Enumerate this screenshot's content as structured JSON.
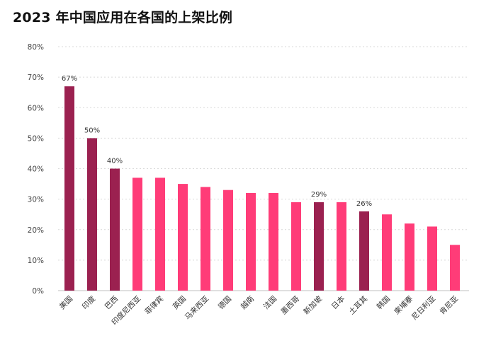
{
  "chart_data": {
    "type": "bar",
    "title": "2023 年中国应用在各国的上架比例",
    "xlabel": "",
    "ylabel": "",
    "ylim": [
      0,
      80
    ],
    "yticks": [
      0,
      10,
      20,
      30,
      40,
      50,
      60,
      70,
      80
    ],
    "ytick_labels": [
      "0%",
      "10%",
      "20%",
      "30%",
      "40%",
      "50%",
      "60%",
      "70%",
      "80%"
    ],
    "grid": true,
    "categories": [
      "美国",
      "印度",
      "巴西",
      "印度尼西亚",
      "菲律宾",
      "英国",
      "马来西亚",
      "德国",
      "越南",
      "法国",
      "墨西哥",
      "新加坡",
      "日本",
      "土耳其",
      "韩国",
      "柬埔寨",
      "尼日利亚",
      "肯尼亚"
    ],
    "values": [
      67,
      50,
      40,
      37,
      37,
      35,
      34,
      33,
      32,
      32,
      29,
      29,
      29,
      26,
      25,
      22,
      21,
      15
    ],
    "highlighted": [
      true,
      true,
      true,
      false,
      false,
      false,
      false,
      false,
      false,
      false,
      false,
      true,
      false,
      true,
      false,
      false,
      false,
      false
    ],
    "data_labels": [
      "67%",
      "50%",
      "40%",
      "",
      "",
      "",
      "",
      "",
      "",
      "",
      "",
      "29%",
      "",
      "26%",
      "",
      "",
      "",
      ""
    ],
    "colors": {
      "highlight": "#9b2150",
      "default": "#ff3c78"
    }
  }
}
